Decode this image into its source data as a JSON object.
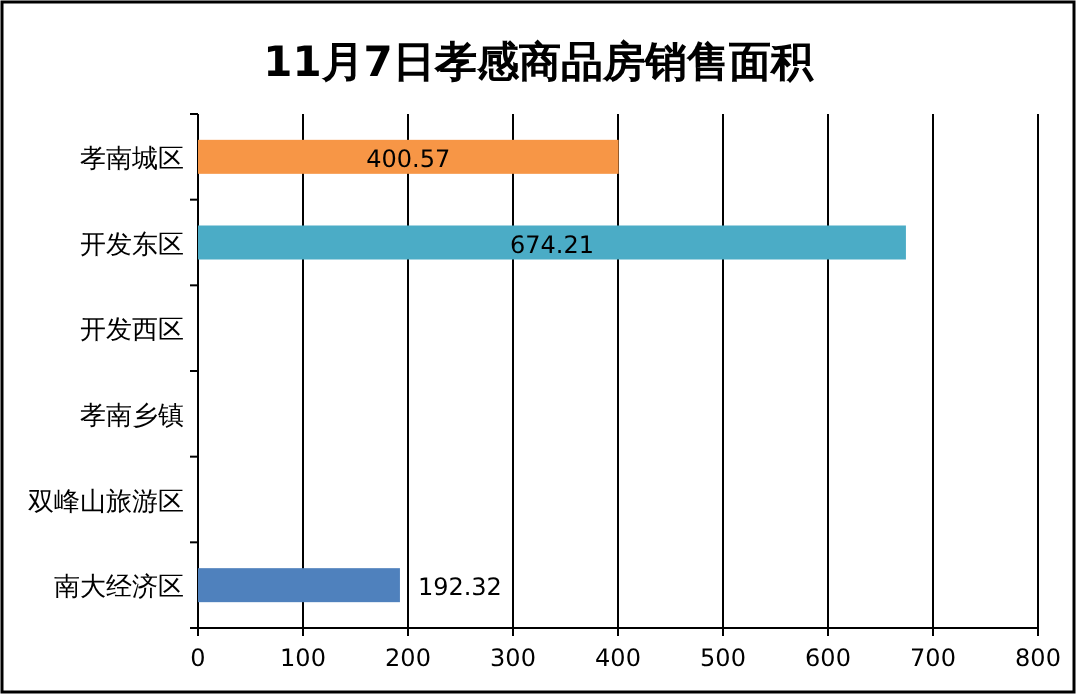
{
  "chart_data": {
    "type": "bar",
    "orientation": "horizontal",
    "title": "11月7日孝感商品房销售面积",
    "categories": [
      "孝南城区",
      "开发东区",
      "开发西区",
      "孝南乡镇",
      "双峰山旅游区",
      "南大经济区"
    ],
    "values": [
      400.57,
      674.21,
      null,
      null,
      null,
      192.32
    ],
    "colors": [
      "#f79646",
      "#4bacc6",
      null,
      null,
      null,
      "#4f81bd"
    ],
    "xlim": [
      0,
      800
    ],
    "xticks": [
      0,
      100,
      200,
      300,
      400,
      500,
      600,
      700,
      800
    ],
    "grid": "x",
    "data_labels": true
  }
}
